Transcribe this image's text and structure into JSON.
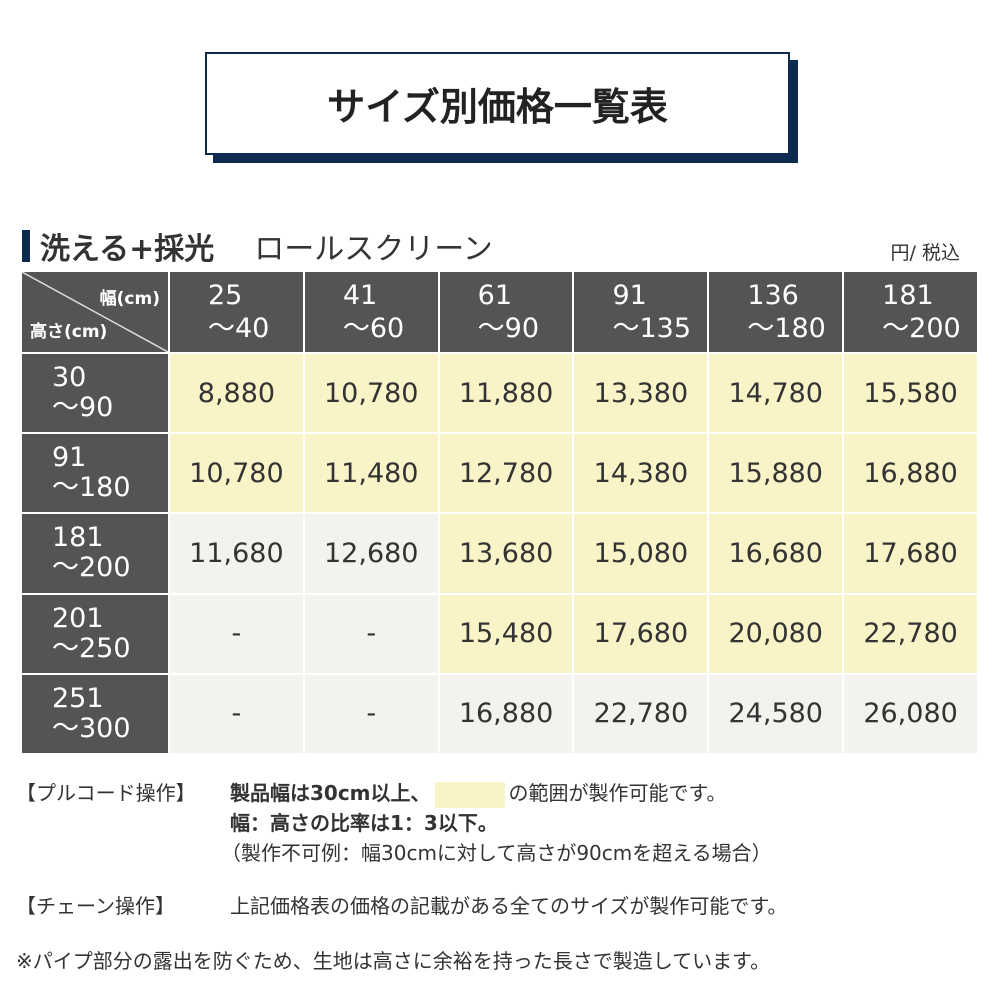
{
  "title": "サイズ別価格一覧表",
  "product": {
    "name1": "洗える+採光",
    "name2": "ロールスクリーン"
  },
  "unit": "円/ 税込",
  "table": {
    "corner_width": "幅(cm)",
    "corner_height": "高さ(cm)",
    "columns": [
      [
        "25",
        "〜40"
      ],
      [
        "41",
        "〜60"
      ],
      [
        "61",
        "〜90"
      ],
      [
        "91",
        "〜135"
      ],
      [
        "136",
        "〜180"
      ],
      [
        "181",
        "〜200"
      ]
    ],
    "rows": [
      {
        "h": [
          "30",
          "〜90"
        ],
        "prices": [
          "8,880",
          "10,780",
          "11,880",
          "13,380",
          "14,780",
          "15,580"
        ],
        "pullcord": [
          1,
          1,
          1,
          1,
          1,
          1
        ]
      },
      {
        "h": [
          "91",
          "〜180"
        ],
        "prices": [
          "10,780",
          "11,480",
          "12,780",
          "14,380",
          "15,880",
          "16,880"
        ],
        "pullcord": [
          1,
          1,
          1,
          1,
          1,
          1
        ]
      },
      {
        "h": [
          "181",
          "〜200"
        ],
        "prices": [
          "11,680",
          "12,680",
          "13,680",
          "15,080",
          "16,680",
          "17,680"
        ],
        "pullcord": [
          0,
          0,
          1,
          1,
          1,
          1
        ]
      },
      {
        "h": [
          "201",
          "〜250"
        ],
        "prices": [
          "-",
          "-",
          "15,480",
          "17,680",
          "20,080",
          "22,780"
        ],
        "pullcord": [
          0,
          0,
          1,
          1,
          1,
          1
        ]
      },
      {
        "h": [
          "251",
          "〜300"
        ],
        "prices": [
          "-",
          "-",
          "16,880",
          "22,780",
          "24,580",
          "26,080"
        ],
        "pullcord": [
          0,
          0,
          0,
          0,
          0,
          0
        ]
      }
    ]
  },
  "colors": {
    "navy": "#0d2a50",
    "header": "#545454",
    "available": "#f8f4c8",
    "other": "#f3f2ee"
  },
  "notes": {
    "pull_label": "【プルコード操作】",
    "pull_line1_a": "製品幅は30cm以上、",
    "pull_line1_b": "の範囲が製作可能です。",
    "pull_line2": "幅：高さの比率は1：3以下。",
    "pull_line3": "（製作不可例：幅30cmに対して高さが90cmを超える場合）",
    "chain_label": "【チェーン操作】",
    "chain_text": "上記価格表の価格の記載がある全てのサイズが製作可能です。",
    "footnote": "※パイプ部分の露出を防ぐため、生地は高さに余裕を持った長さで製造しています。"
  }
}
